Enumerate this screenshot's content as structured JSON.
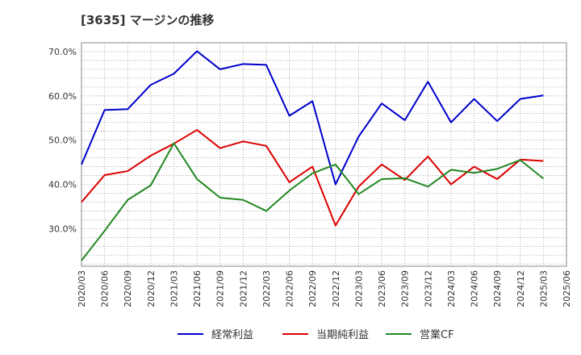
{
  "title": "[3635]  マージンの推移",
  "chart_data": {
    "type": "line",
    "title": "[3635]  マージンの推移",
    "x": [
      "2020/03",
      "2020/06",
      "2020/09",
      "2020/12",
      "2021/03",
      "2021/06",
      "2021/09",
      "2021/12",
      "2022/03",
      "2022/06",
      "2022/09",
      "2022/12",
      "2023/03",
      "2023/06",
      "2023/09",
      "2023/12",
      "2024/03",
      "2024/06",
      "2024/09",
      "2024/12",
      "2025/03",
      "2025/06"
    ],
    "ylim": [
      21.5,
      72
    ],
    "yticks": [
      30,
      40,
      50,
      60,
      70
    ],
    "ytick_labels": [
      "30.0%",
      "40.0%",
      "50.0%",
      "60.0%",
      "70.0%"
    ],
    "grid": true,
    "legend_position": "bottom",
    "series": [
      {
        "name": "経常利益",
        "color": "#0000cc",
        "values": [
          44.5,
          56.8,
          57.0,
          62.5,
          65.0,
          70.1,
          66.0,
          67.2,
          67.0,
          55.5,
          58.8,
          40.0,
          50.8,
          58.3,
          54.5,
          63.2,
          54.0,
          59.3,
          54.3,
          59.3,
          60.1,
          null
        ]
      },
      {
        "name": "当期純利益",
        "color": "#dd0000",
        "values": [
          36.0,
          42.1,
          43.0,
          46.5,
          49.2,
          52.3,
          48.2,
          49.7,
          48.7,
          40.5,
          44.0,
          30.7,
          39.5,
          44.5,
          41.0,
          46.3,
          40.0,
          44.0,
          41.2,
          45.6,
          45.3,
          null
        ]
      },
      {
        "name": "営業CF",
        "color": "#228822",
        "values": [
          22.8,
          29.5,
          36.5,
          39.8,
          49.3,
          41.2,
          37.0,
          36.5,
          34.0,
          38.6,
          42.5,
          44.5,
          37.8,
          41.2,
          41.4,
          39.5,
          43.3,
          42.6,
          43.5,
          45.5,
          41.3,
          null
        ]
      }
    ]
  }
}
